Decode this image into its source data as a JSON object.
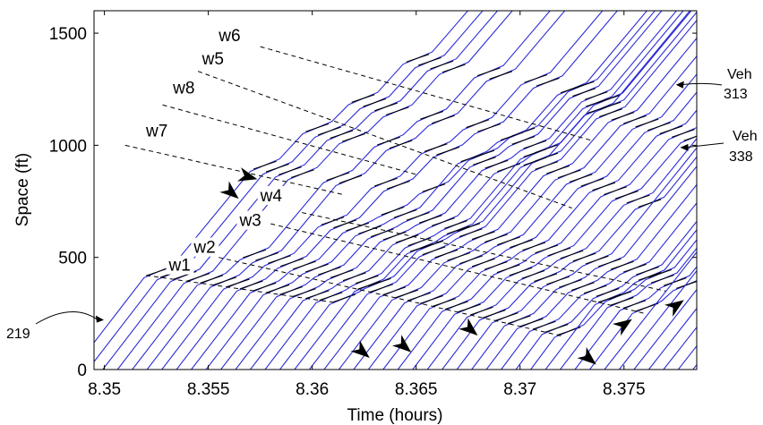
{
  "colors": {
    "trajectory": "#2b2bd6",
    "stopped_segment": "#000000",
    "wave_line": "#000000",
    "axes": "#000000"
  },
  "chart_data": {
    "type": "line",
    "title": "",
    "xlabel": "Time (hours)",
    "ylabel": "Space (ft)",
    "xlim": [
      8.3495,
      8.3785
    ],
    "ylim": [
      0,
      1600
    ],
    "xticks": [
      8.35,
      8.355,
      8.36,
      8.365,
      8.37,
      8.375
    ],
    "xtick_labels": [
      "8.35",
      "8.355",
      "8.36",
      "8.365",
      "8.37",
      "8.375"
    ],
    "yticks": [
      0,
      500,
      1000,
      1500
    ],
    "ytick_labels": [
      "0",
      "500",
      "1000",
      "1500"
    ],
    "grid": false,
    "legend": "none",
    "series_description": "Vehicle trajectories (space vs time), drawn in blue; stopped segments in black",
    "trajectories": {
      "first_entry_time": 8.3485,
      "headway_hours": 0.00071,
      "count": 48,
      "free_speed_ft_per_hour": 118000,
      "stop_waves": [
        {
          "label": "w1",
          "start": [
            8.352,
            420
          ],
          "end": [
            8.361,
            300
          ]
        },
        {
          "label": "w2",
          "start": [
            8.3555,
            500
          ],
          "end": [
            8.372,
            150
          ]
        },
        {
          "label": "w3",
          "start": [
            8.358,
            650
          ],
          "end": [
            8.376,
            250
          ]
        },
        {
          "label": "w4",
          "start": [
            8.3595,
            700
          ],
          "end": [
            8.377,
            350
          ]
        },
        {
          "label": "w5",
          "start": [
            8.3545,
            1330
          ],
          "end": [
            8.3725,
            720
          ]
        },
        {
          "label": "w6",
          "start": [
            8.3575,
            1440
          ],
          "end": [
            8.3735,
            1020
          ]
        },
        {
          "label": "w7",
          "start": [
            8.351,
            1000
          ],
          "end": [
            8.3615,
            780
          ]
        },
        {
          "label": "w8",
          "start": [
            8.3528,
            1180
          ],
          "end": [
            8.365,
            870
          ]
        }
      ]
    },
    "wave_annotations": [
      {
        "label": "w1",
        "x": 8.3531,
        "y": 440
      },
      {
        "label": "w2",
        "x": 8.3543,
        "y": 520
      },
      {
        "label": "w3",
        "x": 8.3565,
        "y": 640
      },
      {
        "label": "w4",
        "x": 8.3575,
        "y": 750
      },
      {
        "label": "w5",
        "x": 8.3547,
        "y": 1360
      },
      {
        "label": "w6",
        "x": 8.3555,
        "y": 1465
      },
      {
        "label": "w7",
        "x": 8.352,
        "y": 1040
      },
      {
        "label": "w8",
        "x": 8.3533,
        "y": 1230
      }
    ],
    "arrowheads": [
      {
        "x": 8.3569,
        "y": 860,
        "dir": "right"
      },
      {
        "x": 8.3561,
        "y": 790,
        "dir": "down-right"
      },
      {
        "x": 8.3624,
        "y": 80,
        "dir": "down-right"
      },
      {
        "x": 8.3644,
        "y": 105,
        "dir": "down-right"
      },
      {
        "x": 8.3676,
        "y": 180,
        "dir": "down-right"
      },
      {
        "x": 8.3733,
        "y": 50,
        "dir": "down-right"
      },
      {
        "x": 8.375,
        "y": 200,
        "dir": "up-right"
      },
      {
        "x": 8.3775,
        "y": 285,
        "dir": "up-right"
      }
    ],
    "annotations": [
      {
        "text": "219",
        "target": [
          8.3498,
          225
        ]
      },
      {
        "text": "Veh",
        "line2": "313",
        "target": [
          8.3775,
          1270
        ]
      },
      {
        "text": "Veh",
        "line2": "338",
        "target": [
          8.3777,
          990
        ]
      }
    ]
  }
}
